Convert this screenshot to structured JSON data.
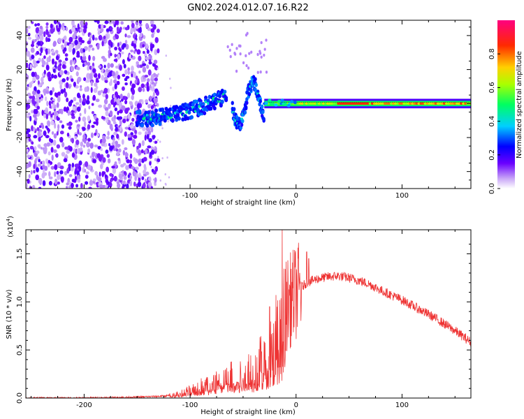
{
  "figure_title": "GN02.2024.012.07.16.R22",
  "chart_data": [
    {
      "type": "heatmap",
      "title": "GN02.2024.012.07.16.R22",
      "xlabel": "Height of straight line (km)",
      "ylabel": "Frequency (Hz)",
      "xlim": [
        -255,
        165
      ],
      "ylim": [
        -50,
        49
      ],
      "x_ticks": [
        -200,
        -100,
        0,
        100
      ],
      "x_tick_labels": [
        "-200",
        "-100",
        "0",
        "100"
      ],
      "y_ticks": [
        40,
        20,
        0,
        -20,
        -40
      ],
      "y_tick_labels": [
        "40",
        "20",
        "0",
        "-20",
        "-40"
      ],
      "colorbar": {
        "label": "Normalized spectral amplitude",
        "range": [
          0,
          1
        ],
        "ticks": [
          0.0,
          0.2,
          0.4,
          0.6,
          0.8
        ],
        "tick_labels": [
          "0.0",
          "0.2",
          "0.4",
          "0.6",
          "0.8"
        ],
        "colormap": "rainbow"
      },
      "regions": [
        {
          "name": "noise",
          "x_range": [
            -255,
            -138
          ],
          "freq_range": [
            -50,
            49
          ],
          "amplitude": 0.1
        },
        {
          "name": "rising-band",
          "x_range": [
            -150,
            -65
          ],
          "freq_start": -9,
          "freq_end": 5,
          "amplitude": 0.3
        },
        {
          "name": "oscillating-band",
          "x_range": [
            -60,
            -30
          ],
          "freq_center": 0,
          "freq_swing": 12,
          "amplitude": 0.35
        },
        {
          "name": "steady-band",
          "x_range": [
            -30,
            165
          ],
          "freq": 0,
          "amplitude": 0.85
        }
      ]
    },
    {
      "type": "line",
      "xlabel": "Height of straight line (km)",
      "ylabel": "SNR (10 * v/v)",
      "y_multiplier": "(x10⁴)",
      "y_multiplier_base": "(x10",
      "y_multiplier_exp": "4",
      "y_multiplier_close": ")",
      "xlim": [
        -255,
        165
      ],
      "ylim": [
        0,
        1.75
      ],
      "x_ticks": [
        -200,
        -100,
        0,
        100
      ],
      "x_tick_labels": [
        "-200",
        "-100",
        "0",
        "100"
      ],
      "y_ticks": [
        0.0,
        0.5,
        1.0,
        1.5
      ],
      "y_tick_labels": [
        "0.0",
        "0.5",
        "1.0",
        "1.5"
      ],
      "series": [
        {
          "name": "SNR",
          "color": "#ee3333",
          "x": [
            -255,
            -200,
            -150,
            -125,
            -110,
            -100,
            -90,
            -80,
            -70,
            -60,
            -50,
            -40,
            -30,
            -20,
            -15,
            -10,
            0,
            10,
            20,
            30,
            40,
            50,
            60,
            70,
            80,
            90,
            100,
            110,
            120,
            130,
            140,
            150,
            160,
            165
          ],
          "y": [
            0.0,
            0.0,
            0.01,
            0.02,
            0.04,
            0.08,
            0.12,
            0.16,
            0.2,
            0.22,
            0.25,
            0.3,
            0.4,
            0.6,
            0.8,
            0.95,
            1.1,
            1.2,
            1.24,
            1.26,
            1.27,
            1.25,
            1.22,
            1.18,
            1.12,
            1.07,
            1.02,
            0.96,
            0.9,
            0.84,
            0.77,
            0.7,
            0.62,
            0.58
          ],
          "spikes": [
            {
              "x": -13,
              "y": 1.75
            },
            {
              "x": 10,
              "y": 1.52
            },
            {
              "x": 12,
              "y": 1.45
            },
            {
              "x": -25,
              "y": 0.95
            }
          ]
        }
      ]
    }
  ]
}
